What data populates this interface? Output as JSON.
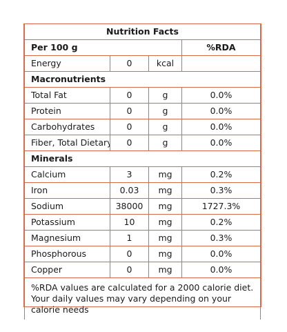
{
  "title": "Nutrition Facts",
  "header": {
    "serving": "Per 100 g",
    "rda_label": "%RDA"
  },
  "energy": {
    "label": "Energy",
    "value": "0",
    "unit": "kcal",
    "rda": ""
  },
  "macronutrients": {
    "heading": "Macronutrients",
    "rows": [
      {
        "label": "Total Fat",
        "value": "0",
        "unit": "g",
        "rda": "0.0%"
      },
      {
        "label": "Protein",
        "value": "0",
        "unit": "g",
        "rda": "0.0%"
      },
      {
        "label": "Carbohydrates",
        "value": "0",
        "unit": "g",
        "rda": "0.0%"
      },
      {
        "label": "Fiber, Total Dietary",
        "value": "0",
        "unit": "g",
        "rda": "0.0%"
      }
    ]
  },
  "minerals": {
    "heading": "Minerals",
    "rows": [
      {
        "label": "Calcium",
        "value": "3",
        "unit": "mg",
        "rda": "0.2%"
      },
      {
        "label": "Iron",
        "value": "0.03",
        "unit": "mg",
        "rda": "0.3%"
      },
      {
        "label": "Sodium",
        "value": "38000",
        "unit": "mg",
        "rda": "1727.3%"
      },
      {
        "label": "Potassium",
        "value": "10",
        "unit": "mg",
        "rda": "0.2%"
      },
      {
        "label": "Magnesium",
        "value": "1",
        "unit": "mg",
        "rda": "0.3%"
      },
      {
        "label": "Phosphorous",
        "value": "0",
        "unit": "mg",
        "rda": "0.0%"
      },
      {
        "label": "Copper",
        "value": "0",
        "unit": "mg",
        "rda": "0.0%"
      }
    ]
  },
  "footnote": "%RDA values are calculated for a 2000 calorie diet. Your daily values may vary depending on your calorie needs",
  "colors": {
    "border": "#d86a4a",
    "text": "#1a1a1a"
  }
}
